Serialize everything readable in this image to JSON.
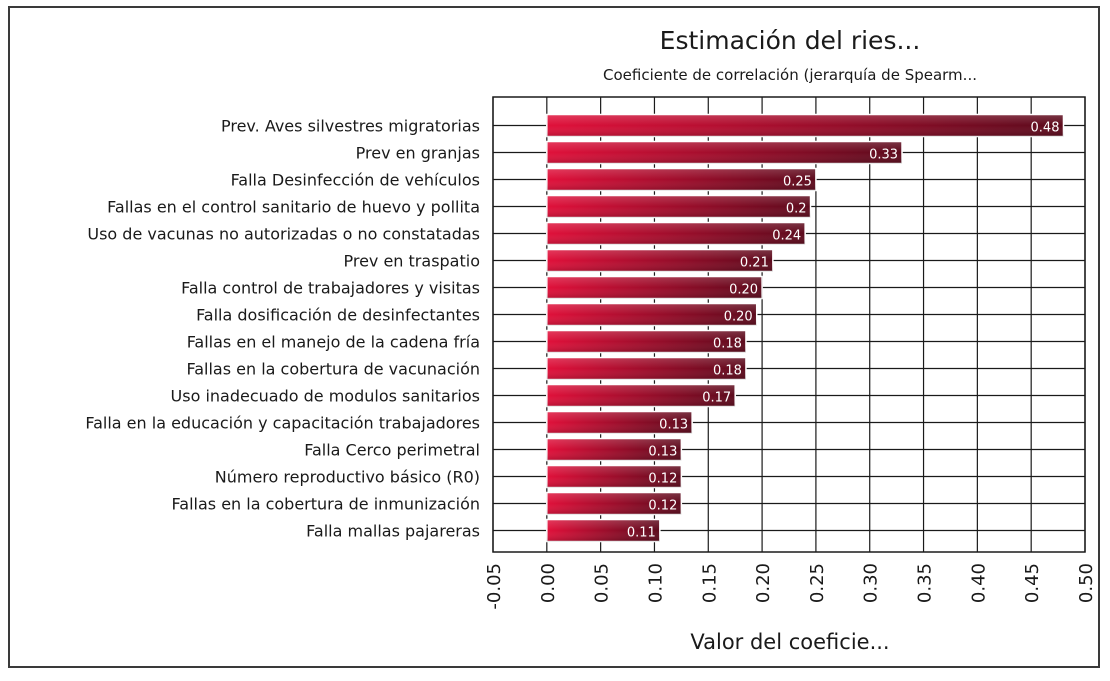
{
  "chart_data": {
    "type": "bar",
    "orientation": "horizontal",
    "title": "Estimación del ries...",
    "subtitle": "Coeficiente de correlación (jerarquía de Spearm...",
    "xlabel": "Valor del coeficie...",
    "ylabel": "",
    "xlim": [
      -0.05,
      0.5
    ],
    "x_ticks": [
      "-0.05",
      "0.00",
      "0.05",
      "0.10",
      "0.15",
      "0.20",
      "0.25",
      "0.30",
      "0.35",
      "0.40",
      "0.45",
      "0.50"
    ],
    "grid": true,
    "categories": [
      "Prev. Aves silvestres migratorias",
      "Prev en granjas",
      "Falla Desinfección de vehículos",
      "Fallas en el control sanitario de huevo y pollita",
      "Uso de vacunas no autorizadas o no constatadas",
      "Prev en traspatio",
      "Falla control de trabajadores y visitas",
      "Falla dosificación de desinfectantes",
      "Fallas en el manejo de la cadena fría",
      "Fallas en la cobertura de vacunación",
      "Uso inadecuado de modulos sanitarios",
      "Falla en la educación y capacitación trabajadores",
      "Falla Cerco perimetral",
      "Número reproductivo básico (R0)",
      "Fallas en la cobertura de inmunización",
      "Falla mallas pajareras"
    ],
    "values": [
      0.48,
      0.33,
      0.25,
      0.245,
      0.24,
      0.21,
      0.2,
      0.195,
      0.185,
      0.185,
      0.175,
      0.135,
      0.125,
      0.125,
      0.125,
      0.105
    ],
    "data_labels": [
      "0.48",
      "0.33",
      "0.25",
      "0.2",
      "0.24",
      "0.21",
      "0.20",
      "0.20",
      "0.18",
      "0.18",
      "0.17",
      "0.13",
      "0.13",
      "0.12",
      "0.12",
      "0.11"
    ],
    "colors": {
      "bar_light": "#e0103a",
      "bar_dark": "#5c0a1c",
      "bar_edge": "#ffffff",
      "grid": "#1a1a1a",
      "text": "#1a1a1a"
    }
  }
}
